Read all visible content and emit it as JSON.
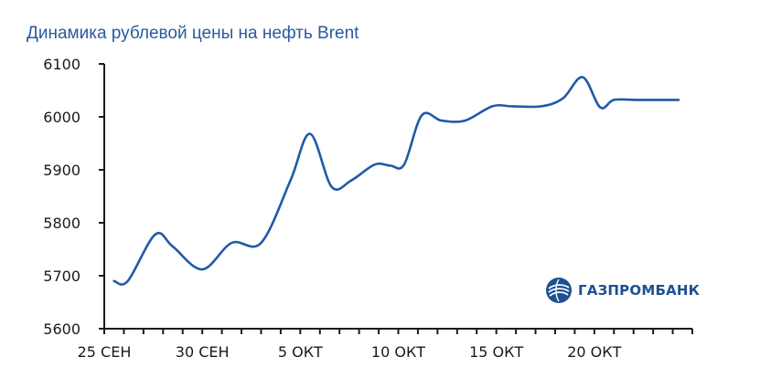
{
  "title": "Динамика рублевой цены на нефть Brent",
  "logo": {
    "text": "ГАЗПРОМБАНК",
    "icon": "gazprombank-logo-icon"
  },
  "colors": {
    "line": "#1f5aa8",
    "title": "#2a5a9e",
    "logo": "#1d4f93"
  },
  "chart_data": {
    "type": "line",
    "title": "Динамика рублевой цены на нефть Brent",
    "xlabel": "",
    "ylabel": "",
    "x_start": "25 СЕН",
    "x_ticks": [
      {
        "day": 0,
        "label": "25 СЕН"
      },
      {
        "day": 5,
        "label": "30 СЕН"
      },
      {
        "day": 10,
        "label": "5 ОКТ"
      },
      {
        "day": 15,
        "label": "10 ОКТ"
      },
      {
        "day": 20,
        "label": "15 ОКТ"
      },
      {
        "day": 25,
        "label": "20 ОКТ"
      }
    ],
    "xlim": [
      0,
      30
    ],
    "ylim": [
      5600,
      6100
    ],
    "y_ticks": [
      5600,
      5700,
      5800,
      5900,
      6000,
      6100
    ],
    "grid": false,
    "series": [
      {
        "x": [
          0.5,
          1.2,
          2.6,
          3.5,
          5.0,
          6.5,
          8.0,
          9.5,
          10.5,
          11.6,
          12.6,
          13.8,
          14.6,
          15.3,
          16.2,
          17.2,
          18.4,
          19.8,
          20.8,
          22.3,
          23.4,
          24.4,
          25.3,
          26.0,
          27.2,
          29.3
        ],
        "y": [
          5690,
          5690,
          5778,
          5755,
          5712,
          5762,
          5762,
          5880,
          5968,
          5868,
          5880,
          5910,
          5908,
          5910,
          6003,
          5993,
          5993,
          6020,
          6020,
          6020,
          6035,
          6075,
          6018,
          6032,
          6032,
          6032
        ]
      }
    ]
  }
}
